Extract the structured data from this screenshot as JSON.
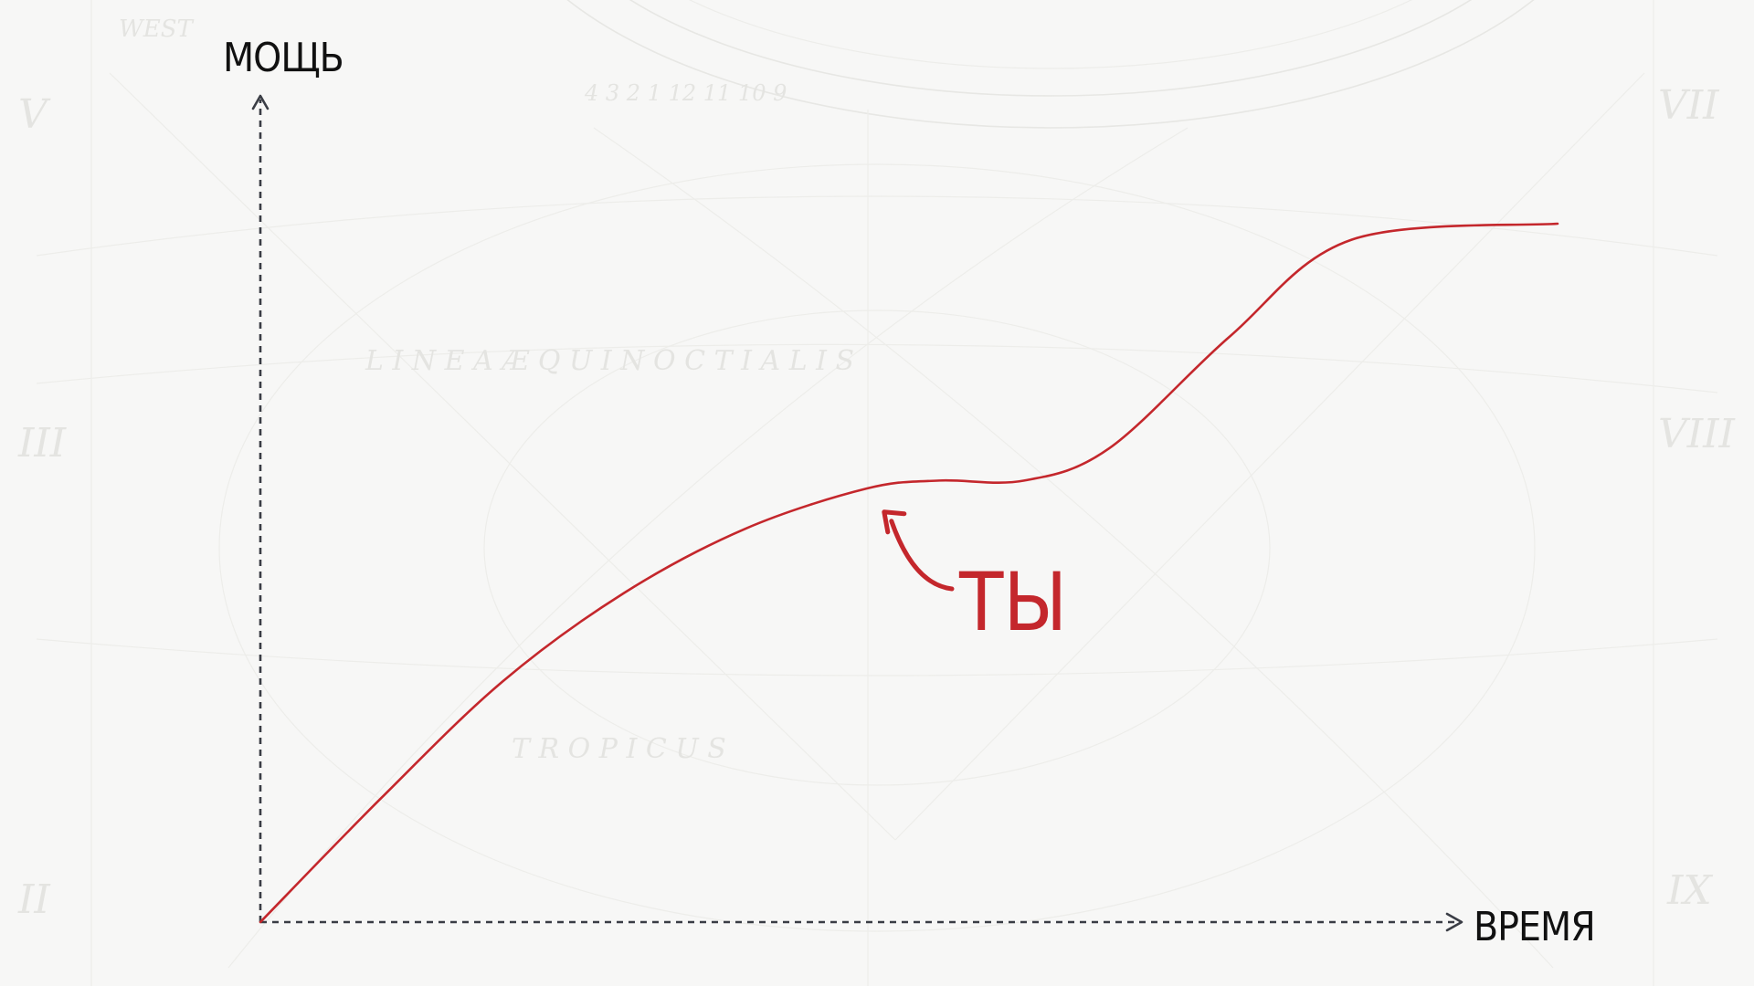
{
  "chart_data": {
    "type": "line",
    "xlabel": "ВРЕМЯ",
    "ylabel": "МОЩЬ",
    "title": "",
    "xlim": [
      0,
      10
    ],
    "ylim": [
      0,
      10
    ],
    "grid": false,
    "series": [
      {
        "values_x": [
          0,
          1,
          2,
          3,
          4,
          5,
          5.6,
          6.3,
          7,
          8,
          9,
          10.7
        ],
        "values_y": [
          0,
          1.55,
          3.0,
          4.1,
          4.9,
          5.4,
          5.5,
          5.5,
          5.9,
          7.3,
          8.5,
          8.7
        ],
        "color": "#c4272c"
      }
    ],
    "annotations": [
      {
        "text": "ТЫ",
        "target_x": 5.1,
        "target_y": 5.2,
        "color": "#c4272c"
      }
    ]
  }
}
